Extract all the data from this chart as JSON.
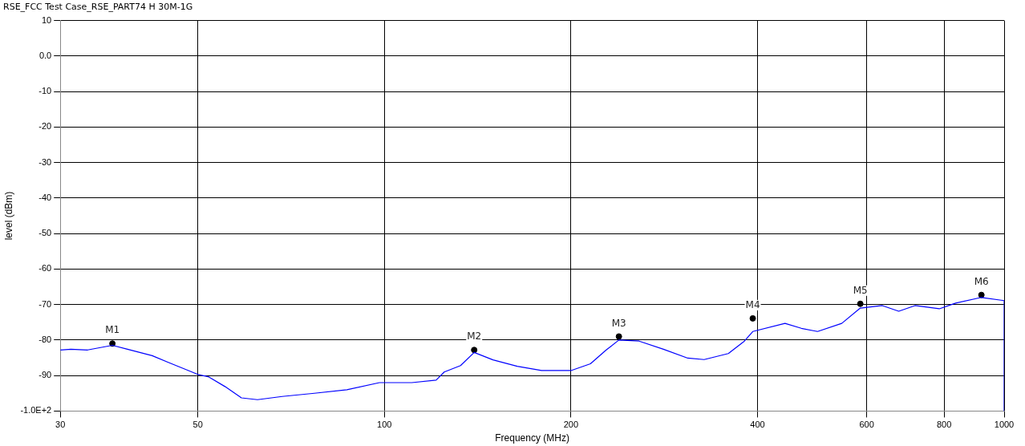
{
  "chart_data": {
    "type": "line",
    "title": "RSE_FCC Test Case_RSE_PART74 H 30M-1G",
    "xlabel": "Frequency (MHz)",
    "ylabel": "level (dBm)",
    "log": "x",
    "grid": true,
    "legend": false,
    "marker": "none",
    "line_style": "solid",
    "xlim": [
      30,
      1000
    ],
    "xticks": [
      30,
      50,
      100,
      200,
      400,
      600,
      800,
      1000
    ],
    "ylim": [
      -100,
      10
    ],
    "yticks": [
      10,
      {
        "value": 0,
        "label": "0.0"
      },
      -10,
      -20,
      -30,
      -40,
      -50,
      -60,
      -70,
      -80,
      -90,
      {
        "value": -100,
        "label": "-1.0E+2"
      }
    ],
    "series": [
      {
        "color": "#0000ff",
        "x": [
          30,
          31.2,
          33.2,
          36.4,
          38.5,
          42.2,
          44.8,
          48.3,
          50,
          52.1,
          55.3,
          58.8,
          62.4,
          68.4,
          77.1,
          87,
          98.2,
          110.7,
          121.2,
          124.9,
          132.7,
          139.6,
          149.7,
          163.8,
          179.3,
          200,
          215,
          228,
          239,
          257.6,
          282,
          308.7,
          328,
          358.9,
          381,
          393,
          443,
          470.7,
          500,
          547,
          586,
          636,
          676,
          718,
          786,
          835,
          919,
          1000,
          1000
        ],
        "values": [
          -82.8,
          -82.6,
          -82.8,
          -81.5,
          -82.6,
          -84.4,
          -86.3,
          -88.6,
          -89.7,
          -90.4,
          -93.1,
          -96.3,
          -96.8,
          -95.9,
          -95,
          -94,
          -92,
          -92,
          -91.3,
          -89,
          -87.2,
          -83.5,
          -85.6,
          -87.4,
          -88.6,
          -88.6,
          -86.7,
          -82.8,
          -80,
          -80.3,
          -82.6,
          -85.1,
          -85.5,
          -83.8,
          -80.3,
          -77.6,
          -75.3,
          -76.7,
          -77.6,
          -75.3,
          -71,
          -70.3,
          -71.9,
          -70.3,
          -71.2,
          -69.6,
          -68,
          -68.9,
          -100
        ]
      },
      {
        "type": "scatter",
        "color": "#000000",
        "marker": "circle",
        "x": [
          36.4,
          139.6,
          239,
          393,
          586,
          919
        ],
        "values": [
          -81,
          -82.8,
          -79,
          -73.9,
          -69.8,
          -67.3
        ]
      }
    ],
    "annotations": [
      {
        "text": "M1",
        "x": 36.4,
        "y": -81
      },
      {
        "text": "M2",
        "x": 139.6,
        "y": -82.8
      },
      {
        "text": "M3",
        "x": 239,
        "y": -79
      },
      {
        "text": "M4",
        "x": 393,
        "y": -73.9
      },
      {
        "text": "M5",
        "x": 586,
        "y": -69.8
      },
      {
        "text": "M6",
        "x": 919,
        "y": -67.3
      }
    ]
  }
}
